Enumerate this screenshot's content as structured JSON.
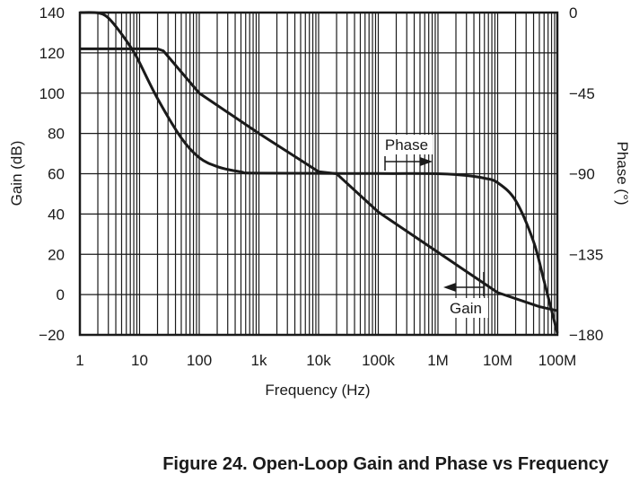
{
  "chart_data": {
    "type": "line",
    "title": "Figure 24. Open-Loop Gain and Phase vs Frequency",
    "xlabel": "Frequency (Hz)",
    "ylabel": "Gain (dB)",
    "y2label": "Phase (°)",
    "xscale": "log",
    "xlim": [
      1,
      100000000
    ],
    "ylim": [
      -20,
      140
    ],
    "y2lim": [
      -180,
      0
    ],
    "grid": true,
    "x_ticks": [
      {
        "value": 1,
        "label": "1"
      },
      {
        "value": 10,
        "label": "10"
      },
      {
        "value": 100,
        "label": "100"
      },
      {
        "value": 1000,
        "label": "1k"
      },
      {
        "value": 10000,
        "label": "10k"
      },
      {
        "value": 100000,
        "label": "100k"
      },
      {
        "value": 1000000,
        "label": "1M"
      },
      {
        "value": 10000000,
        "label": "10M"
      },
      {
        "value": 100000000,
        "label": "100M"
      }
    ],
    "y_ticks": [
      {
        "value": 140,
        "label": "140"
      },
      {
        "value": 120,
        "label": "120"
      },
      {
        "value": 100,
        "label": "100"
      },
      {
        "value": 80,
        "label": "80"
      },
      {
        "value": 60,
        "label": "60"
      },
      {
        "value": 40,
        "label": "40"
      },
      {
        "value": 20,
        "label": "20"
      },
      {
        "value": 0,
        "label": "0"
      },
      {
        "value": -20,
        "label": "−20"
      }
    ],
    "y2_ticks": [
      {
        "value": 0,
        "label": "0"
      },
      {
        "value": -45,
        "label": "−45"
      },
      {
        "value": -90,
        "label": "−90"
      },
      {
        "value": -135,
        "label": "−135"
      },
      {
        "value": -180,
        "label": "−180"
      }
    ],
    "series": [
      {
        "name": "Gain",
        "axis": "left",
        "x": [
          1,
          20,
          25,
          100,
          1000,
          10000,
          20000,
          100000,
          1000000,
          10000000,
          50000000,
          100000000
        ],
        "y": [
          122,
          122,
          121,
          100,
          80,
          61,
          60,
          41,
          21,
          1,
          -6,
          -8
        ]
      },
      {
        "name": "Phase",
        "axis": "right",
        "x": [
          1,
          2,
          3,
          5,
          8,
          10,
          20,
          50,
          100,
          200,
          500,
          1000,
          100000,
          1000000,
          3000000,
          6000000,
          10000000,
          20000000,
          40000000,
          60000000,
          100000000
        ],
        "y": [
          0,
          -0.2,
          -3,
          -12,
          -22,
          -28,
          -48,
          -70,
          -81,
          -86,
          -89,
          -89.7,
          -89.9,
          -90,
          -91,
          -92.5,
          -95,
          -105,
          -128,
          -150,
          -179
        ]
      }
    ],
    "annotations": [
      {
        "text": "Phase",
        "series": "Phase",
        "direction": "right"
      },
      {
        "text": "Gain",
        "series": "Gain",
        "direction": "left"
      }
    ]
  }
}
